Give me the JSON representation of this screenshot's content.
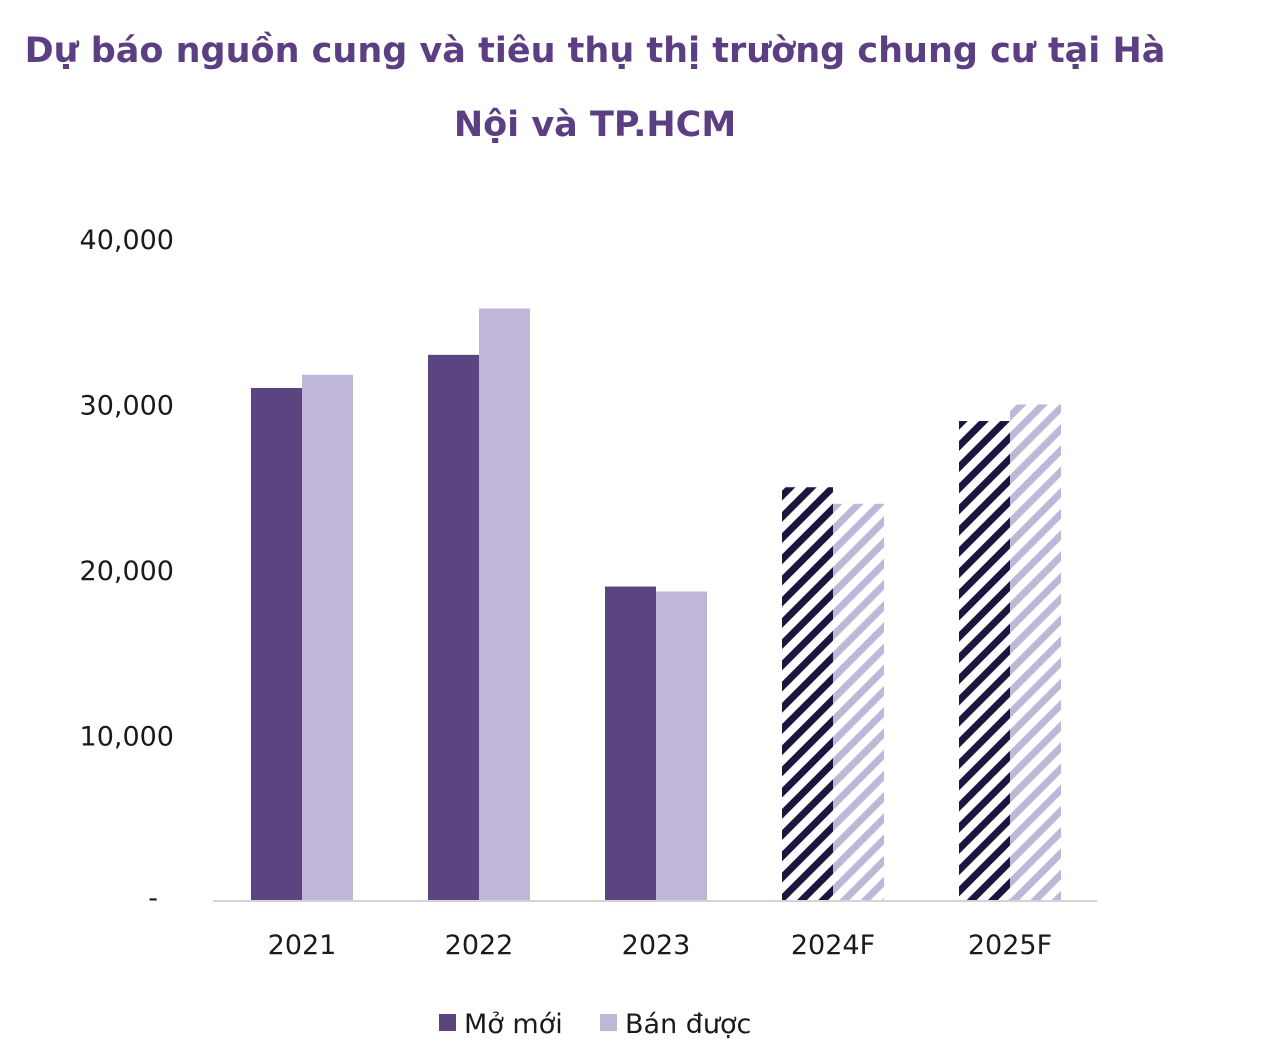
{
  "chart_data": {
    "type": "bar",
    "title_line1": "Dự báo nguồn cung và tiêu thụ thị trường chung cư tại Hà",
    "title_line2": "Nội và TP.HCM",
    "categories": [
      "2021",
      "2022",
      "2023",
      "2024F",
      "2025F"
    ],
    "forecast": [
      false,
      false,
      false,
      true,
      true
    ],
    "series": [
      {
        "name": "Mở mới",
        "color": "#5b4580",
        "values": [
          31000,
          33000,
          19000,
          25000,
          29000
        ]
      },
      {
        "name": "Bán được",
        "color": "#c0b7d8",
        "values": [
          31800,
          35800,
          18700,
          24000,
          30000
        ]
      }
    ],
    "ylim": [
      0,
      40000
    ],
    "yticks": [
      0,
      10000,
      20000,
      30000,
      40000
    ],
    "ytick_labels": [
      "-",
      "10,000",
      "20,000",
      "30,000",
      "40,000"
    ],
    "forecast_hatch_colors": [
      "#1c1540",
      "#c0b7d8"
    ],
    "grid": false,
    "legend_position": "bottom-center"
  }
}
